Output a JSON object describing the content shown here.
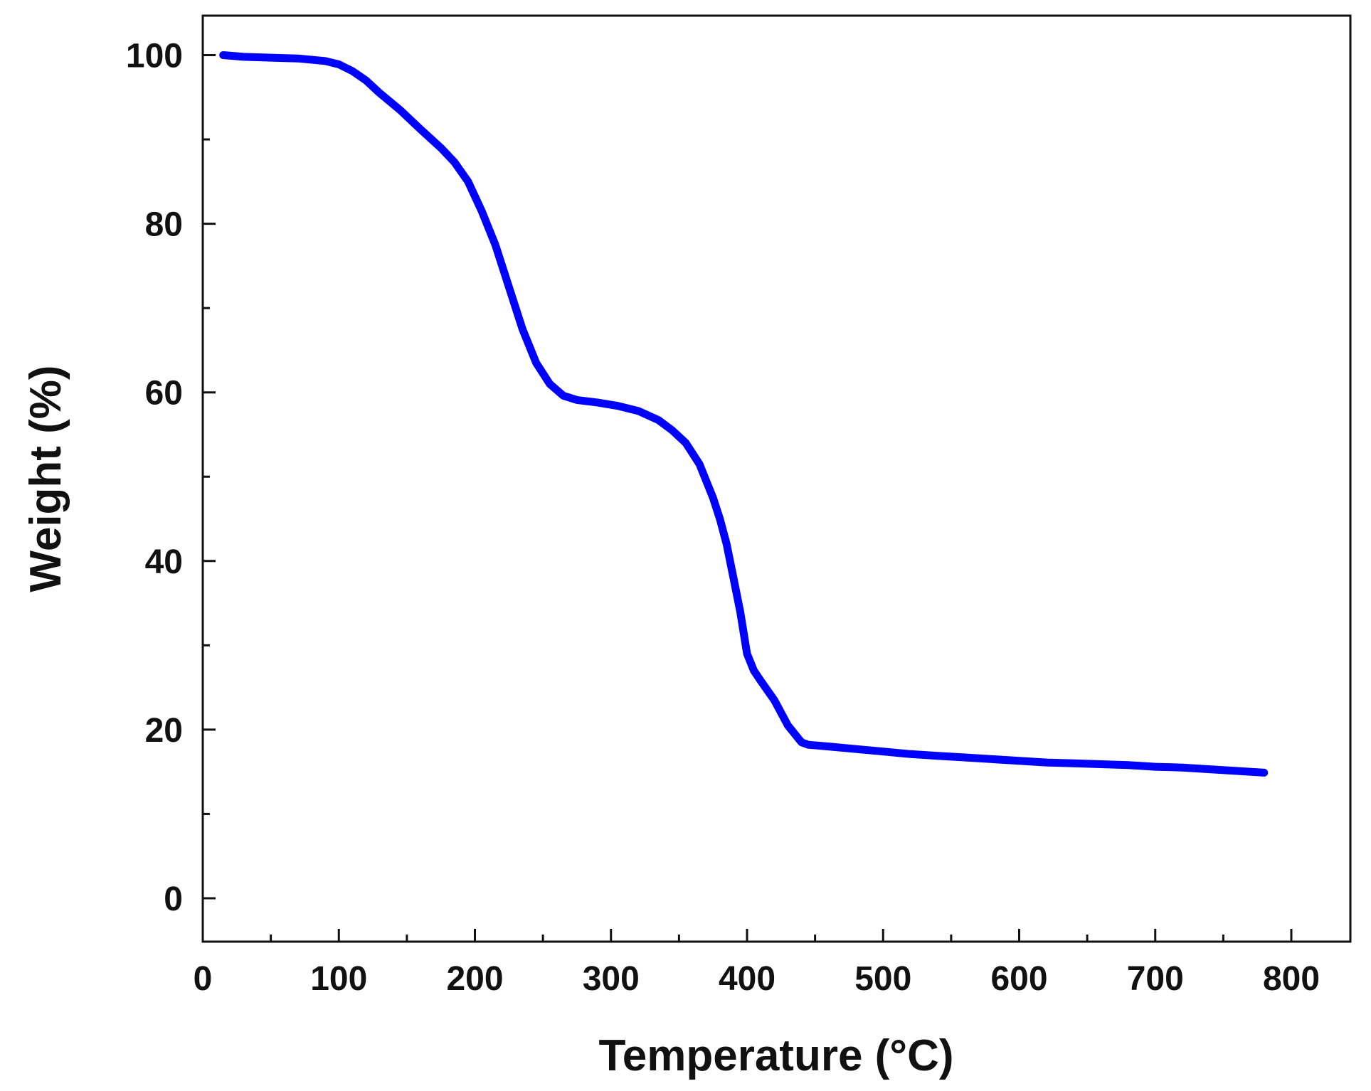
{
  "chart_data": {
    "type": "line",
    "title": "",
    "xlabel": "Temperature (°C)",
    "ylabel": "Weight (%)",
    "xlim": [
      0,
      850
    ],
    "ylim": [
      -5,
      105
    ],
    "x_ticks": [
      0,
      100,
      200,
      300,
      400,
      500,
      600,
      700,
      800
    ],
    "y_ticks": [
      0,
      20,
      40,
      60,
      80,
      100
    ],
    "x_minor_step": 50,
    "y_minor_step": 10,
    "grid": false,
    "legend": "none",
    "colors": {
      "line": "#0000ff",
      "axes": "#111111",
      "background": "#ffffff"
    },
    "series": [
      {
        "x": [
          15,
          30,
          50,
          70,
          90,
          100,
          110,
          120,
          130,
          145,
          160,
          175,
          185,
          195,
          205,
          215,
          225,
          235,
          245,
          255,
          265,
          275,
          290,
          305,
          320,
          335,
          345,
          355,
          365,
          375,
          380,
          385,
          390,
          395,
          400,
          405,
          410,
          420,
          430,
          440,
          445,
          460,
          480,
          500,
          520,
          540,
          560,
          580,
          600,
          620,
          640,
          660,
          680,
          700,
          720,
          740,
          760,
          780
        ],
        "y": [
          100,
          99.8,
          99.7,
          99.6,
          99.3,
          98.9,
          98.1,
          97,
          95.5,
          93.5,
          91.2,
          89,
          87.3,
          85,
          81.5,
          77.5,
          72.5,
          67.5,
          63.5,
          61,
          59.6,
          59.1,
          58.8,
          58.4,
          57.8,
          56.7,
          55.5,
          54,
          51.5,
          47.5,
          45,
          42,
          38,
          34,
          29,
          27,
          25.8,
          23.5,
          20.5,
          18.5,
          18.2,
          18,
          17.7,
          17.4,
          17.1,
          16.9,
          16.7,
          16.5,
          16.3,
          16.1,
          16,
          15.9,
          15.8,
          15.6,
          15.5,
          15.3,
          15.1,
          14.9
        ]
      }
    ]
  }
}
